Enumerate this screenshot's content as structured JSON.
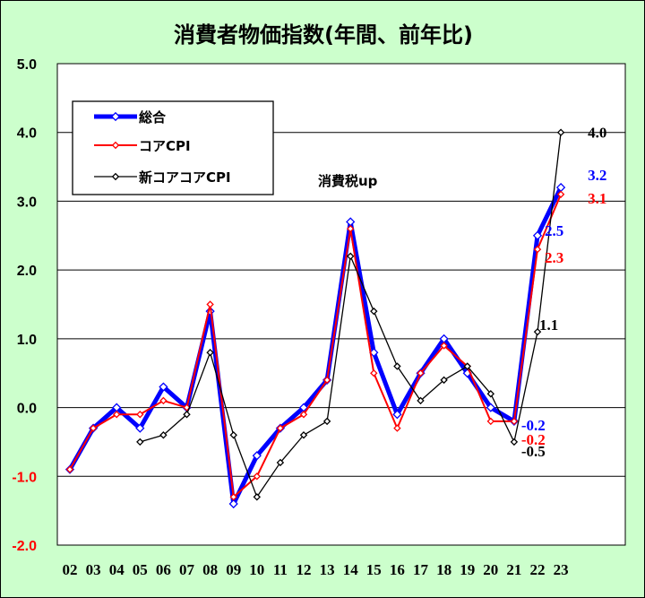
{
  "chart_data": {
    "type": "line",
    "title": "消費者物価指数(年間、前年比)",
    "categories": [
      "02",
      "03",
      "04",
      "05",
      "06",
      "07",
      "08",
      "09",
      "10",
      "11",
      "12",
      "13",
      "14",
      "15",
      "16",
      "17",
      "18",
      "19",
      "20",
      "21",
      "22",
      "23"
    ],
    "ylim": [
      -2.0,
      5.0
    ],
    "yticks": [
      "5.0",
      "4.0",
      "3.0",
      "2.0",
      "1.0",
      "0.0",
      "-1.0",
      "-2.0"
    ],
    "grid": true,
    "legend_position": "top-left",
    "series": [
      {
        "name": "総合",
        "color": "#0000ff",
        "values": [
          -0.9,
          -0.3,
          0.0,
          -0.3,
          0.3,
          0.0,
          1.4,
          -1.4,
          -0.7,
          -0.3,
          0.0,
          0.4,
          2.7,
          0.8,
          -0.1,
          0.5,
          1.0,
          0.5,
          0.0,
          -0.2,
          2.5,
          3.2
        ]
      },
      {
        "name": "コアCPI",
        "color": "#ff0000",
        "values": [
          -0.9,
          -0.3,
          -0.1,
          -0.1,
          0.1,
          0.0,
          1.5,
          -1.3,
          -1.0,
          -0.3,
          -0.1,
          0.4,
          2.6,
          0.5,
          -0.3,
          0.5,
          0.9,
          0.6,
          -0.2,
          -0.2,
          2.3,
          3.1
        ]
      },
      {
        "name": "新コアコアCPI",
        "color": "#000000",
        "values": [
          null,
          null,
          null,
          -0.5,
          -0.4,
          -0.1,
          0.8,
          -0.4,
          -1.3,
          -0.8,
          -0.4,
          -0.2,
          2.2,
          1.4,
          0.6,
          0.1,
          0.4,
          0.6,
          0.2,
          -0.5,
          1.1,
          4.0
        ]
      }
    ],
    "data_labels": [
      {
        "text": "4.0",
        "color": "#000000",
        "series": 2,
        "index": 21
      },
      {
        "text": "3.2",
        "color": "#0000ff",
        "series": 0,
        "index": 21
      },
      {
        "text": "3.1",
        "color": "#ff0000",
        "series": 1,
        "index": 21
      },
      {
        "text": "2.5",
        "color": "#0000ff",
        "series": 0,
        "index": 20
      },
      {
        "text": "2.3",
        "color": "#ff0000",
        "series": 1,
        "index": 20
      },
      {
        "text": "1.1",
        "color": "#000000",
        "series": 2,
        "index": 20
      },
      {
        "text": "-0.2",
        "color": "#0000ff",
        "series": 0,
        "index": 19
      },
      {
        "text": "-0.2",
        "color": "#ff0000",
        "series": 1,
        "index": 19
      },
      {
        "text": "-0.5",
        "color": "#000000",
        "series": 2,
        "index": 19
      }
    ],
    "annotations": [
      {
        "text": "消費税up",
        "near_category": "14"
      }
    ]
  }
}
